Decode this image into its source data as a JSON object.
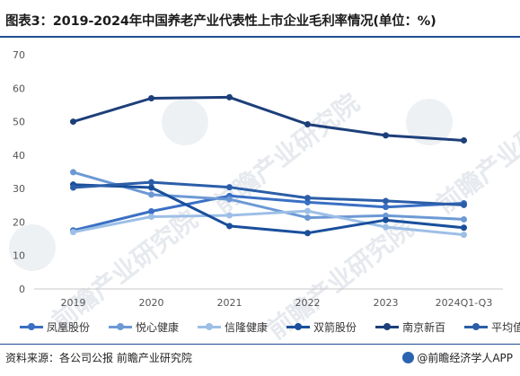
{
  "title": "图表3：2019-2024年中国养老产业代表性上市企业毛利率情况(单位：%)",
  "watermark": "前瞻产业研究院",
  "source": "资料来源：各公司公报 前瞻产业研究院",
  "brand": "@前瞻经济学人APP",
  "chart_data": {
    "type": "line",
    "categories": [
      "2019",
      "2020",
      "2021",
      "2022",
      "2023",
      "2024Q1-Q3"
    ],
    "ylim": [
      0,
      70
    ],
    "yticks": [
      0,
      10,
      20,
      30,
      40,
      50,
      60,
      70
    ],
    "grid": false,
    "legend_position": "bottom",
    "series": [
      {
        "name": "凤凰股份",
        "color": "#3a6fc4",
        "values": [
          17.5,
          23.2,
          27.8,
          25.9,
          24.5,
          25.6
        ]
      },
      {
        "name": "悦心健康",
        "color": "#6c99d5",
        "values": [
          34.9,
          28.2,
          26.8,
          21.3,
          21.9,
          20.8
        ]
      },
      {
        "name": "信隆健康",
        "color": "#9dbfe6",
        "values": [
          17.0,
          21.6,
          22.0,
          23.3,
          18.5,
          16.2
        ]
      },
      {
        "name": "双箭股份",
        "color": "#1a4f9c",
        "values": [
          31.2,
          30.3,
          18.8,
          16.7,
          20.6,
          18.3
        ]
      },
      {
        "name": "南京新百",
        "color": "#1d3f7a",
        "values": [
          50.0,
          57.0,
          57.3,
          49.2,
          45.9,
          44.4
        ]
      },
      {
        "name": "平均值",
        "color": "#2b5ea8",
        "values": [
          30.3,
          31.9,
          30.4,
          27.2,
          26.3,
          25.1
        ]
      }
    ]
  }
}
